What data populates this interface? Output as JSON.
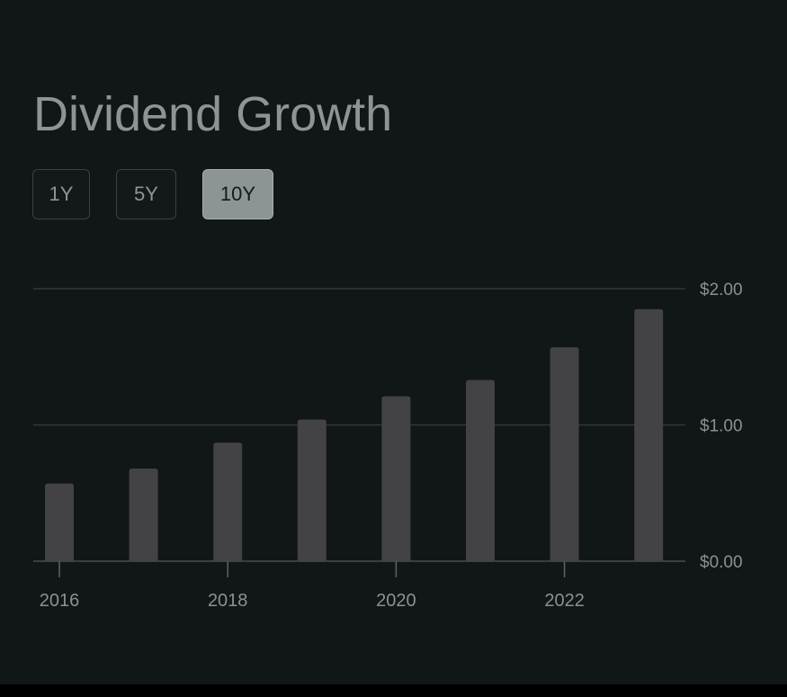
{
  "header": {
    "title": "Dividend Growth"
  },
  "range_selector": {
    "options": [
      {
        "label": "1Y",
        "selected": false
      },
      {
        "label": "5Y",
        "selected": false
      },
      {
        "label": "10Y",
        "selected": true
      }
    ]
  },
  "colors": {
    "background": "#111617",
    "bar": "#434245",
    "gridline": "#32393b",
    "axis_text": "#8a9193",
    "selected_button": "#8d9496"
  },
  "chart_data": {
    "type": "bar",
    "title": "Dividend Growth",
    "xlabel": "",
    "ylabel": "",
    "categories": [
      2016,
      2017,
      2018,
      2019,
      2020,
      2021,
      2022,
      2023
    ],
    "values": [
      0.57,
      0.68,
      0.87,
      1.04,
      1.21,
      1.33,
      1.57,
      1.85
    ],
    "ylim": [
      0,
      2
    ],
    "y_ticks": [
      {
        "value": 0,
        "label": "$0.00"
      },
      {
        "value": 1,
        "label": "$1.00"
      },
      {
        "value": 2,
        "label": "$2.00"
      }
    ],
    "x_tick_labels": [
      {
        "value": 2016,
        "label": "2016"
      },
      {
        "value": 2018,
        "label": "2018"
      },
      {
        "value": 2020,
        "label": "2020"
      },
      {
        "value": 2022,
        "label": "2022"
      }
    ],
    "y_axis_position": "right",
    "grid": true,
    "legend": "none"
  }
}
